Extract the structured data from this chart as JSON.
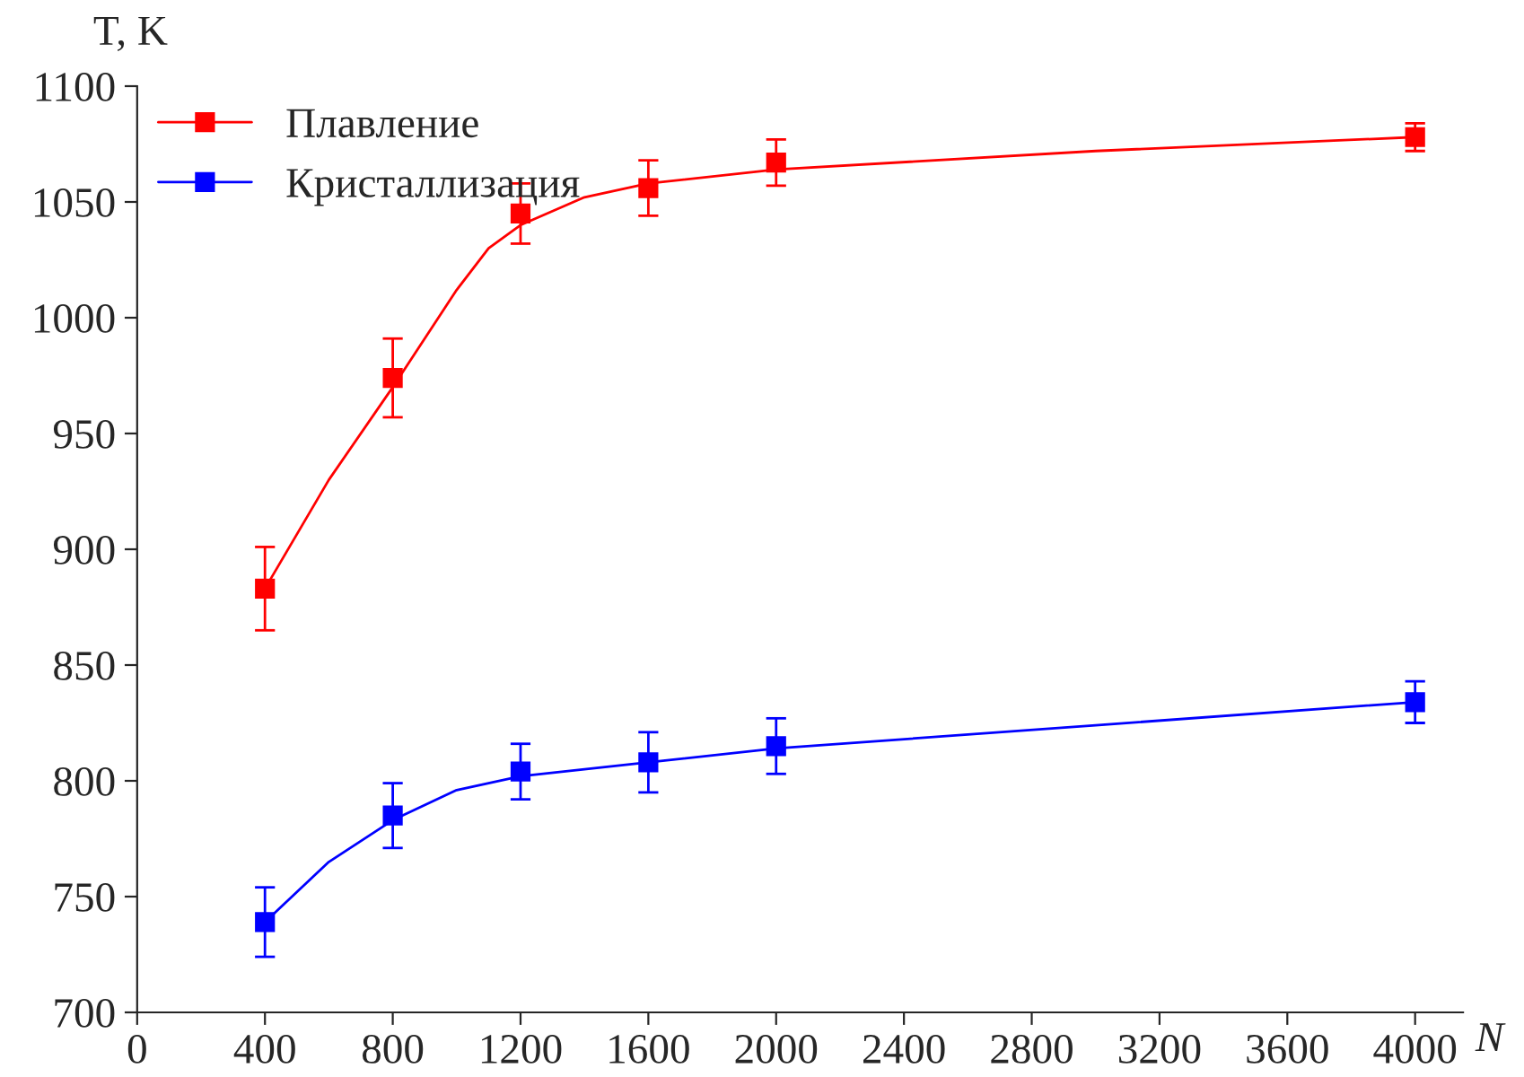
{
  "chart_data": {
    "type": "scatter",
    "xlabel": "N",
    "ylabel": "T, K",
    "x": [
      400,
      800,
      1200,
      1600,
      2000,
      4000
    ],
    "series": [
      {
        "type": "line",
        "marker": "none",
        "color": "#ff0000",
        "x": [
          400,
          600,
          800,
          1000,
          1100,
          1200,
          1400,
          1600,
          2000,
          3000,
          4000
        ],
        "values": [
          883,
          930,
          970,
          1012,
          1030,
          1040,
          1052,
          1058,
          1064,
          1072,
          1078
        ]
      },
      {
        "type": "line",
        "marker": "none",
        "color": "#0000ff",
        "x": [
          400,
          600,
          800,
          1000,
          1200,
          1600,
          2000,
          3000,
          4000
        ],
        "values": [
          739,
          765,
          783,
          796,
          802,
          808,
          814,
          824,
          834
        ]
      },
      {
        "name": "Плавление",
        "marker": "square",
        "color": "#ff0000",
        "values": [
          883,
          974,
          1045,
          1056,
          1067,
          1078
        ],
        "errors": [
          18,
          17,
          13,
          12,
          10,
          6
        ]
      },
      {
        "name": "Кристаллизация",
        "marker": "square",
        "color": "#0000ff",
        "values": [
          739,
          785,
          804,
          808,
          815,
          834
        ],
        "errors": [
          15,
          14,
          12,
          13,
          12,
          9
        ]
      }
    ],
    "xlim": [
      0,
      4150
    ],
    "xticks": [
      0,
      400,
      800,
      1200,
      1600,
      2000,
      2400,
      2800,
      3200,
      3600,
      4000
    ],
    "ylim": [
      700,
      1100
    ],
    "yticks": [
      700,
      750,
      800,
      850,
      900,
      950,
      1000,
      1050,
      1100
    ],
    "line_style": "solid",
    "legend": "top left",
    "grid": false
  }
}
